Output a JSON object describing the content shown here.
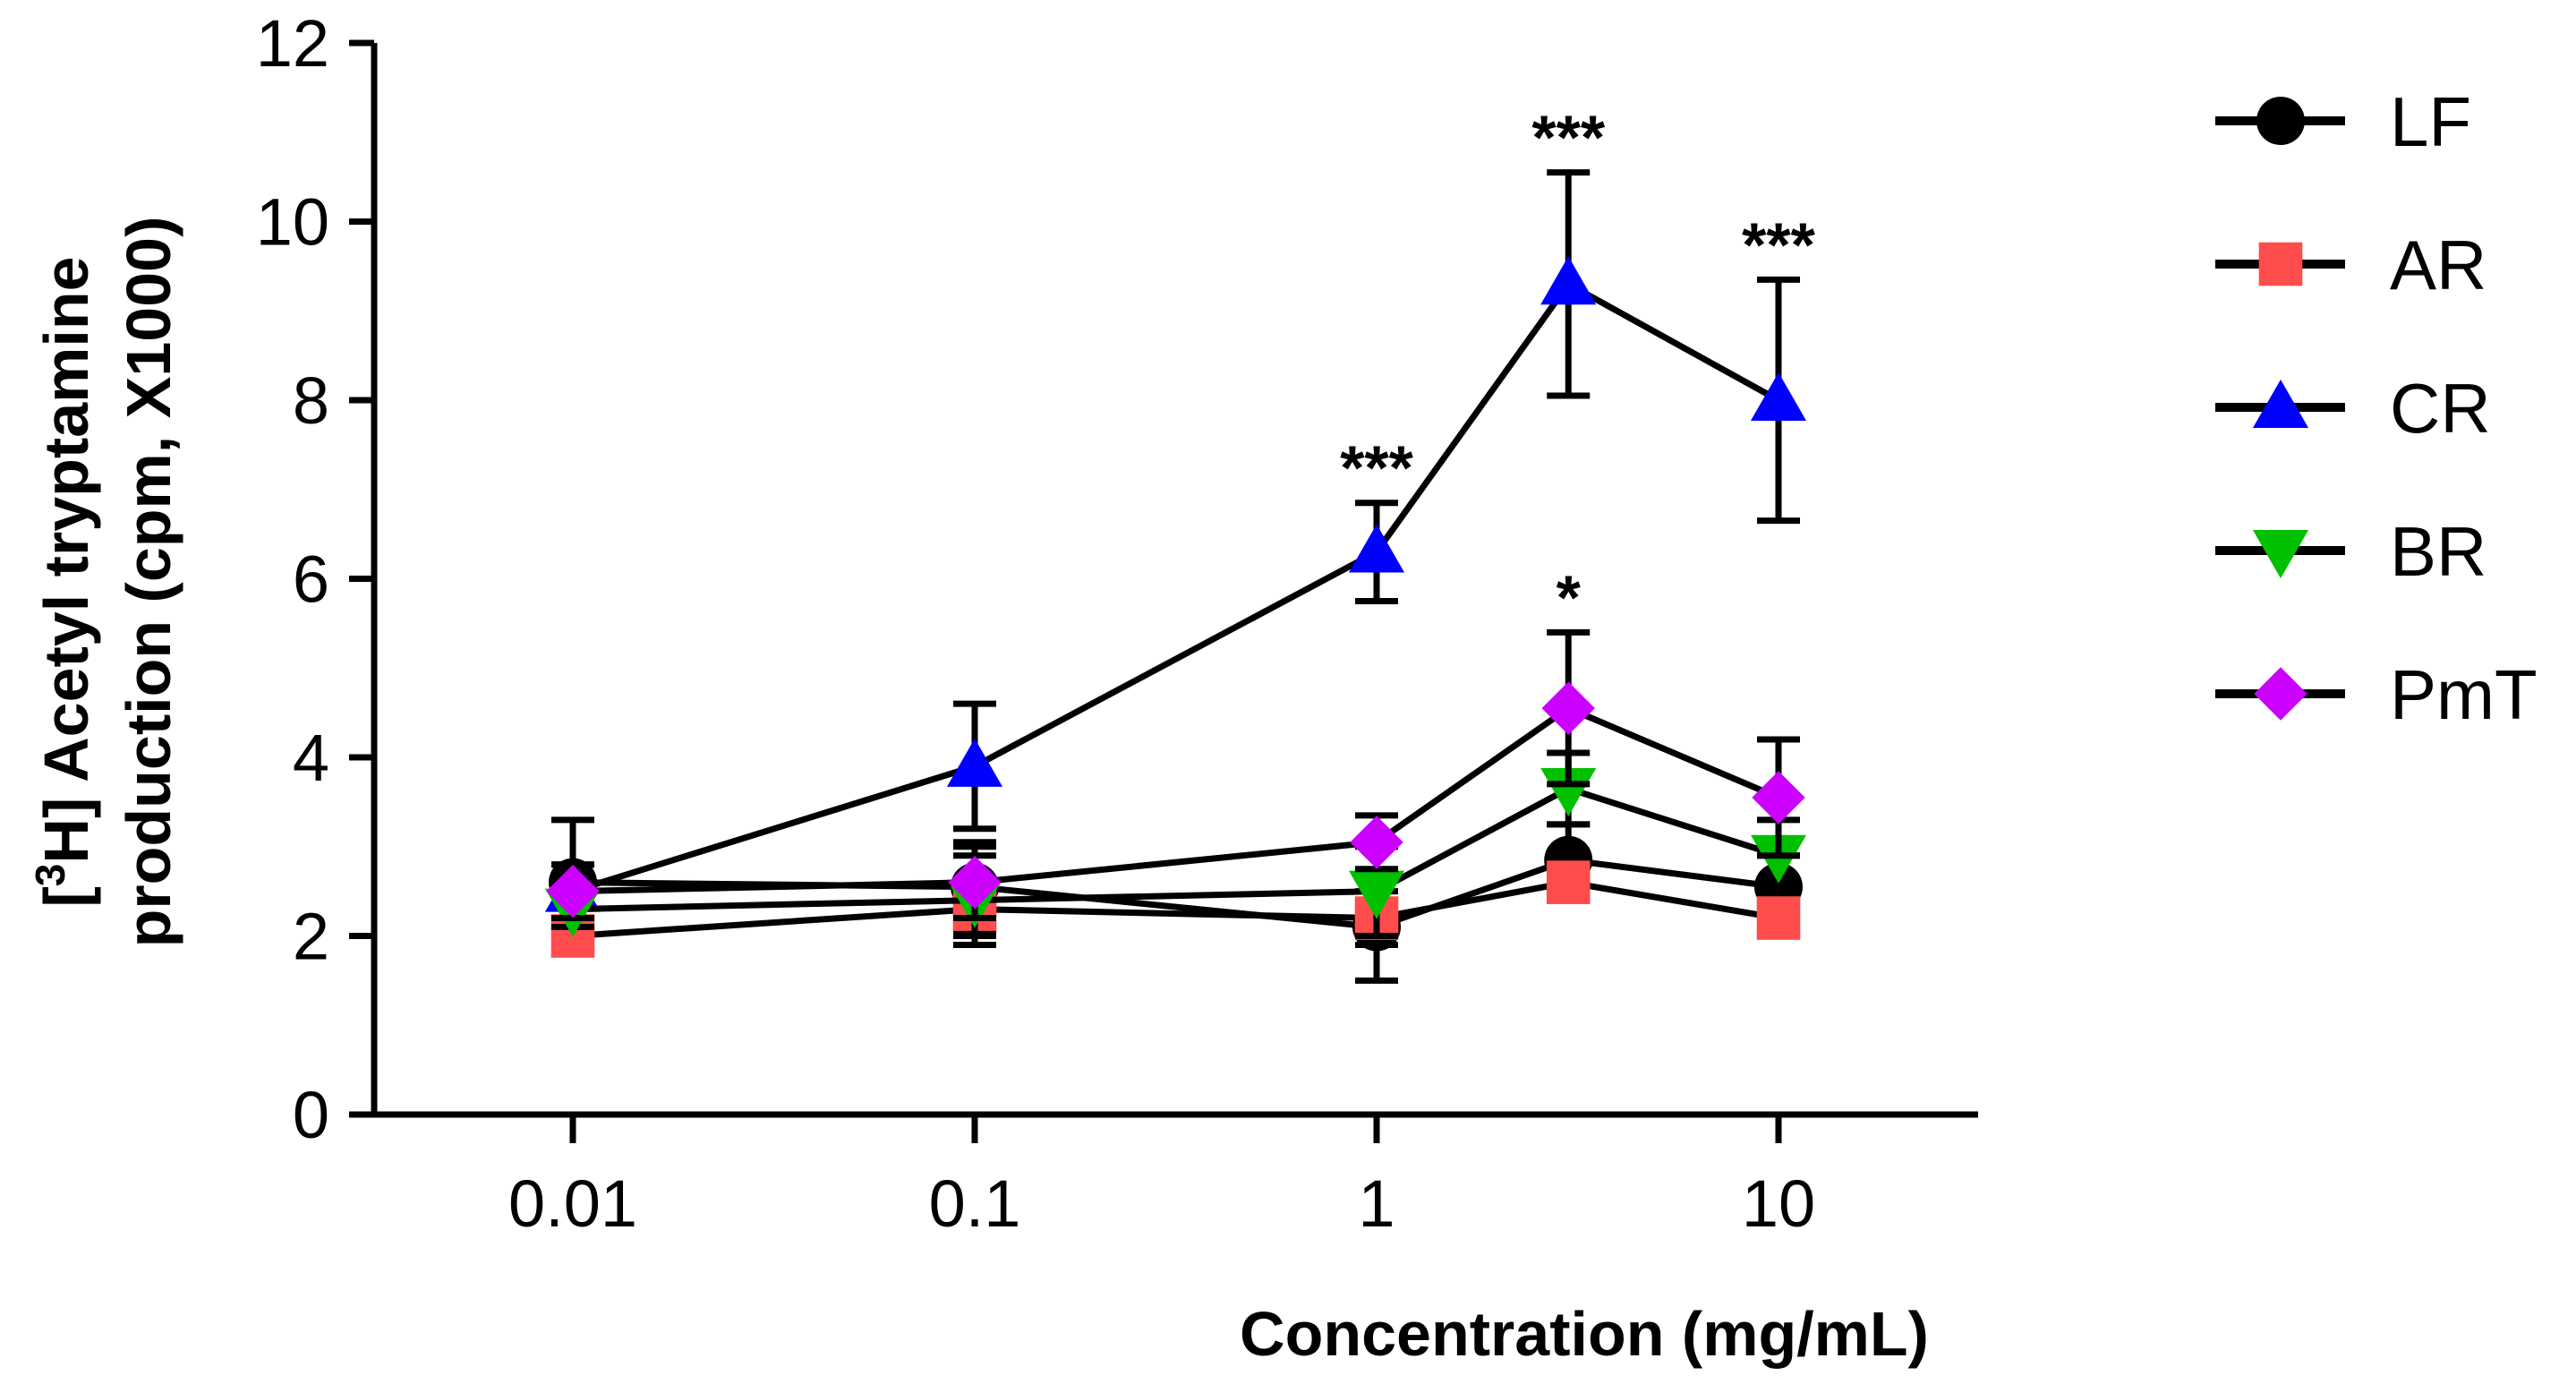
{
  "chart_data": {
    "type": "line",
    "title": "",
    "xlabel": "Concentration (mg/mL)",
    "ylabel_line1": "[3H] Acetyl tryptamine",
    "ylabel_line2": "production (cpm, X1000)",
    "x_scale": "log",
    "x": [
      0.01,
      0.1,
      1,
      3,
      10
    ],
    "x_tick_labels": [
      "0.01",
      "0.1",
      "1",
      "10"
    ],
    "x_tick_values": [
      0.01,
      0.1,
      1,
      10
    ],
    "ylim": [
      0,
      12
    ],
    "y_ticks": [
      0,
      2,
      4,
      6,
      8,
      10,
      12
    ],
    "grid": false,
    "legend_position": "right",
    "series": [
      {
        "name": "LF",
        "marker": "circle",
        "color": "#000000",
        "values": [
          2.6,
          2.55,
          2.1,
          2.85,
          2.55
        ],
        "errors": [
          0.7,
          0.5,
          0.6,
          0.4,
          0.35
        ]
      },
      {
        "name": "AR",
        "marker": "square",
        "color": "#ff4d4d",
        "values": [
          2.0,
          2.3,
          2.2,
          2.6,
          2.2
        ],
        "errors": [
          0.2,
          0.3,
          0.3,
          0.2,
          0.2
        ]
      },
      {
        "name": "CR",
        "marker": "triangle-up",
        "color": "#0000ff",
        "values": [
          2.5,
          3.9,
          6.3,
          9.3,
          8.0
        ],
        "errors": [
          0.3,
          0.7,
          0.55,
          1.25,
          1.35
        ]
      },
      {
        "name": "BR",
        "marker": "triangle-down",
        "color": "#00c000",
        "values": [
          2.3,
          2.4,
          2.5,
          3.65,
          2.9
        ],
        "errors": [
          0.2,
          0.5,
          0.5,
          0.4,
          0.4
        ]
      },
      {
        "name": "PmT",
        "marker": "diamond",
        "color": "#cc00ff",
        "values": [
          2.5,
          2.6,
          3.05,
          4.55,
          3.55
        ],
        "errors": [
          0.3,
          0.4,
          0.3,
          0.85,
          0.65
        ]
      }
    ],
    "annotations": [
      {
        "x": 1,
        "y": 6.9,
        "text": "***"
      },
      {
        "x": 3,
        "y": 10.6,
        "text": "***"
      },
      {
        "x": 10,
        "y": 9.4,
        "text": "***"
      },
      {
        "x": 3,
        "y": 5.45,
        "text": "*"
      }
    ]
  }
}
